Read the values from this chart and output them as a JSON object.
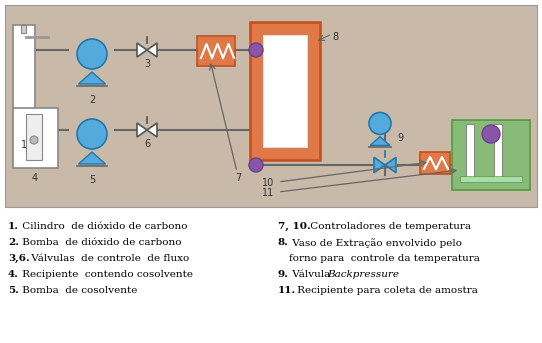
{
  "bg_diagram": "#C8B9A9",
  "bg_figure": "#FFFFFF",
  "colors": {
    "blue": "#55AADD",
    "blue_dark": "#2277AA",
    "orange": "#E07848",
    "orange_dark": "#C05020",
    "green": "#88BB77",
    "green_dark": "#559944",
    "purple": "#8855AA",
    "purple_dark": "#664488",
    "line": "#666666",
    "white": "#FFFFFF",
    "gray": "#AAAAAA"
  },
  "legend_left": [
    [
      "1.",
      " Cilindro  de dióxido de carbono"
    ],
    [
      "2.",
      " Bomba  de dióxido de carbono"
    ],
    [
      "3,6.",
      " Válvulas  de controle  de fluxo"
    ],
    [
      "4.",
      " Recipiente  contendo cosolvente"
    ],
    [
      "5.",
      " Bomba  de cosolvente"
    ]
  ],
  "legend_right": [
    [
      "7, 10.",
      " Controladores de temperatura",
      null
    ],
    [
      "8.",
      " Vaso de Extração envolvido pelo",
      null
    ],
    [
      " ",
      "forno para  controle da temperatura",
      null
    ],
    [
      "9.",
      " Válvula ",
      "Backpressure"
    ],
    [
      "11.",
      " Recipiente para coleta de amostra",
      null
    ]
  ]
}
